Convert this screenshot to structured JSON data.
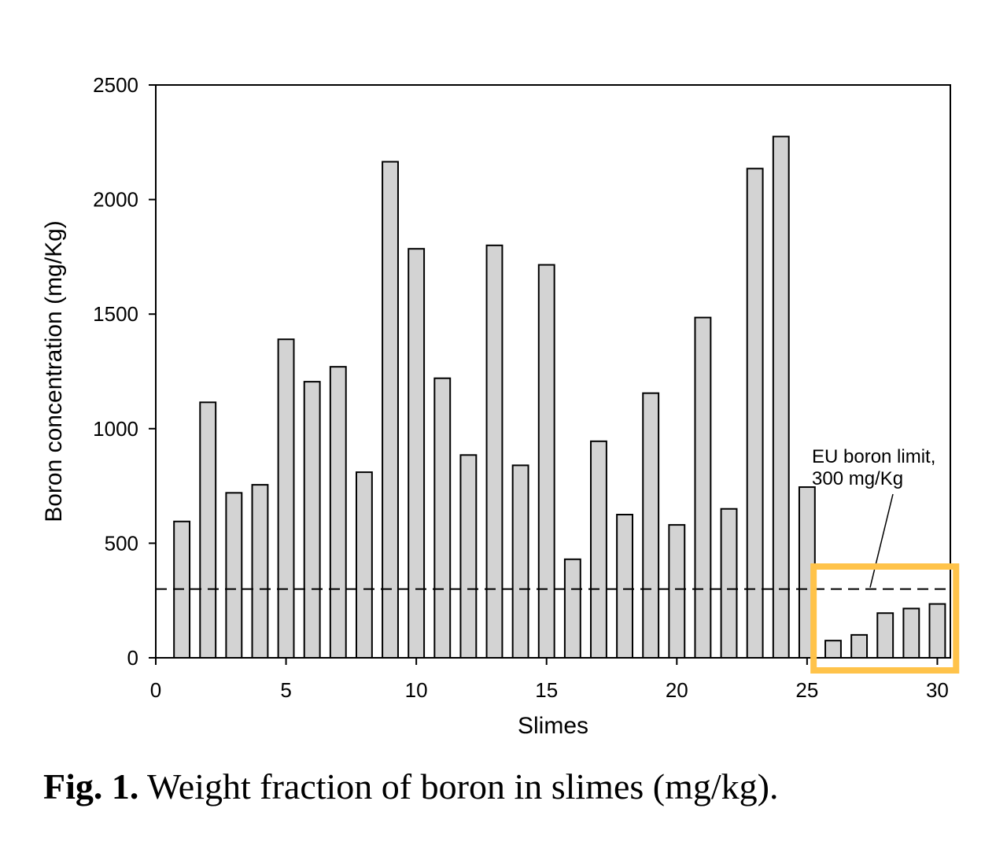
{
  "chart_data": {
    "type": "bar",
    "title": "",
    "xlabel": "Slimes",
    "ylabel": "Boron concentration (mg/Kg)",
    "x": [
      1,
      2,
      3,
      4,
      5,
      6,
      7,
      8,
      9,
      10,
      11,
      12,
      13,
      14,
      15,
      16,
      17,
      18,
      19,
      20,
      21,
      22,
      23,
      24,
      25,
      26,
      27,
      28,
      29,
      30
    ],
    "values": [
      595,
      1115,
      720,
      755,
      1390,
      1205,
      1270,
      810,
      2165,
      1785,
      1220,
      885,
      1800,
      840,
      1715,
      430,
      945,
      625,
      1155,
      580,
      1485,
      650,
      2135,
      2275,
      745,
      75,
      100,
      195,
      215,
      235
    ],
    "xlim": [
      0,
      30.5
    ],
    "ylim": [
      0,
      2500
    ],
    "xticks": [
      "0",
      "5",
      "10",
      "15",
      "20",
      "25",
      "30"
    ],
    "yticks": [
      "0",
      "500",
      "1000",
      "1500",
      "2000",
      "2500"
    ],
    "reference_line": {
      "value": 300,
      "style": "dashed"
    },
    "annotation": {
      "line1": "EU boron limit,",
      "line2": "300 mg/Kg"
    },
    "highlight": {
      "color": "#FFC34A",
      "from_x": 26,
      "to_x": 30
    },
    "bar_color": "#D3D3D3"
  },
  "caption": {
    "label": "Fig. 1.",
    "text": " Weight fraction of boron in slimes (mg/kg)."
  }
}
